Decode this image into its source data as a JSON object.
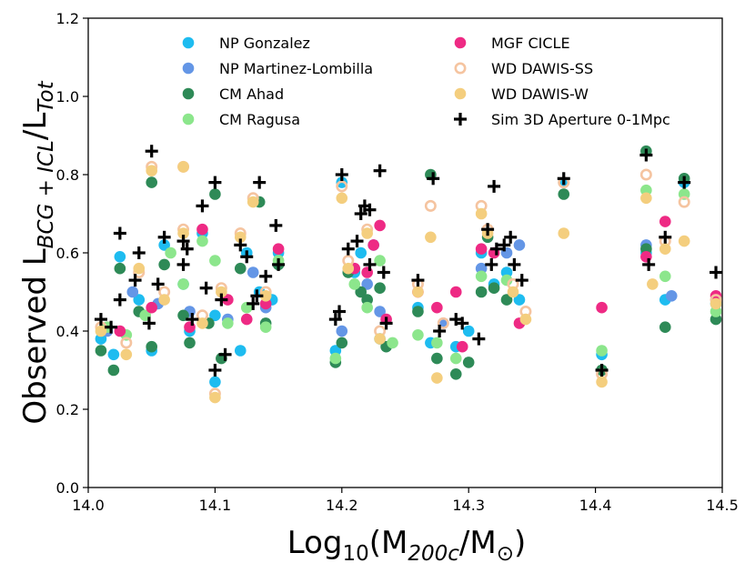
{
  "chart_data": {
    "type": "scatter",
    "title": "",
    "xlim": [
      14.0,
      14.5
    ],
    "ylim": [
      0.0,
      1.2
    ],
    "xticks": [
      "14.0",
      "14.1",
      "14.2",
      "14.3",
      "14.4",
      "14.5"
    ],
    "yticks": [
      "0.0",
      "0.2",
      "0.4",
      "0.6",
      "0.8",
      "1.0",
      "1.2"
    ],
    "xlabel": {
      "pre": "Log",
      "sub": "10",
      "mid": "(M",
      "sub2": "200c",
      "post": "/M",
      "sun": "⊙",
      "end": ")"
    },
    "ylabel": {
      "pre": "Observed L",
      "sub": "BCG + ICL",
      "post": "/L",
      "sub2": "Tot"
    },
    "legend_position": "top",
    "series": [
      {
        "name": "NP Gonzalez",
        "color": "#1ebcf0",
        "marker": "filled-circle",
        "points": [
          [
            14.01,
            0.38
          ],
          [
            14.02,
            0.34
          ],
          [
            14.025,
            0.59
          ],
          [
            14.04,
            0.48
          ],
          [
            14.05,
            0.35
          ],
          [
            14.06,
            0.62
          ],
          [
            14.075,
            0.52
          ],
          [
            14.08,
            0.4
          ],
          [
            14.09,
            0.65
          ],
          [
            14.1,
            0.27
          ],
          [
            14.1,
            0.44
          ],
          [
            14.12,
            0.35
          ],
          [
            14.125,
            0.6
          ],
          [
            14.135,
            0.5
          ],
          [
            14.145,
            0.48
          ],
          [
            14.15,
            0.6
          ],
          [
            14.195,
            0.35
          ],
          [
            14.2,
            0.78
          ],
          [
            14.21,
            0.55
          ],
          [
            14.215,
            0.6
          ],
          [
            14.225,
            0.62
          ],
          [
            14.23,
            0.38
          ],
          [
            14.26,
            0.46
          ],
          [
            14.27,
            0.37
          ],
          [
            14.29,
            0.36
          ],
          [
            14.3,
            0.4
          ],
          [
            14.31,
            0.6
          ],
          [
            14.32,
            0.52
          ],
          [
            14.33,
            0.55
          ],
          [
            14.34,
            0.48
          ],
          [
            14.375,
            0.78
          ],
          [
            14.405,
            0.34
          ],
          [
            14.44,
            0.6
          ],
          [
            14.455,
            0.48
          ],
          [
            14.47,
            0.78
          ],
          [
            14.495,
            0.47
          ]
        ]
      },
      {
        "name": "NP Martinez-Lombilla",
        "color": "#6496e6",
        "marker": "filled-circle",
        "points": [
          [
            14.015,
            0.4
          ],
          [
            14.035,
            0.5
          ],
          [
            14.055,
            0.47
          ],
          [
            14.08,
            0.45
          ],
          [
            14.11,
            0.43
          ],
          [
            14.13,
            0.55
          ],
          [
            14.14,
            0.46
          ],
          [
            14.2,
            0.4
          ],
          [
            14.22,
            0.52
          ],
          [
            14.23,
            0.45
          ],
          [
            14.28,
            0.42
          ],
          [
            14.31,
            0.56
          ],
          [
            14.33,
            0.6
          ],
          [
            14.34,
            0.62
          ],
          [
            14.44,
            0.62
          ],
          [
            14.46,
            0.49
          ]
        ]
      },
      {
        "name": "CM Ahad",
        "color": "#2e8a57",
        "marker": "filled-circle",
        "points": [
          [
            14.01,
            0.35
          ],
          [
            14.02,
            0.3
          ],
          [
            14.025,
            0.56
          ],
          [
            14.04,
            0.45
          ],
          [
            14.05,
            0.36
          ],
          [
            14.05,
            0.78
          ],
          [
            14.06,
            0.57
          ],
          [
            14.075,
            0.44
          ],
          [
            14.08,
            0.37
          ],
          [
            14.095,
            0.42
          ],
          [
            14.1,
            0.75
          ],
          [
            14.105,
            0.33
          ],
          [
            14.12,
            0.56
          ],
          [
            14.135,
            0.73
          ],
          [
            14.14,
            0.42
          ],
          [
            14.15,
            0.57
          ],
          [
            14.195,
            0.32
          ],
          [
            14.2,
            0.37
          ],
          [
            14.205,
            0.55
          ],
          [
            14.215,
            0.5
          ],
          [
            14.22,
            0.48
          ],
          [
            14.23,
            0.51
          ],
          [
            14.235,
            0.36
          ],
          [
            14.26,
            0.45
          ],
          [
            14.27,
            0.8
          ],
          [
            14.275,
            0.33
          ],
          [
            14.29,
            0.29
          ],
          [
            14.3,
            0.32
          ],
          [
            14.31,
            0.5
          ],
          [
            14.315,
            0.64
          ],
          [
            14.32,
            0.51
          ],
          [
            14.33,
            0.48
          ],
          [
            14.375,
            0.75
          ],
          [
            14.405,
            0.3
          ],
          [
            14.44,
            0.86
          ],
          [
            14.44,
            0.61
          ],
          [
            14.455,
            0.41
          ],
          [
            14.47,
            0.79
          ],
          [
            14.495,
            0.43
          ]
        ]
      },
      {
        "name": "CM Ragusa",
        "color": "#8ce68c",
        "marker": "filled-circle",
        "points": [
          [
            14.015,
            0.41
          ],
          [
            14.03,
            0.39
          ],
          [
            14.045,
            0.44
          ],
          [
            14.065,
            0.6
          ],
          [
            14.075,
            0.52
          ],
          [
            14.09,
            0.63
          ],
          [
            14.1,
            0.58
          ],
          [
            14.11,
            0.42
          ],
          [
            14.125,
            0.46
          ],
          [
            14.14,
            0.41
          ],
          [
            14.15,
            0.58
          ],
          [
            14.195,
            0.33
          ],
          [
            14.21,
            0.52
          ],
          [
            14.22,
            0.46
          ],
          [
            14.23,
            0.58
          ],
          [
            14.24,
            0.37
          ],
          [
            14.26,
            0.39
          ],
          [
            14.275,
            0.37
          ],
          [
            14.29,
            0.33
          ],
          [
            14.31,
            0.54
          ],
          [
            14.33,
            0.53
          ],
          [
            14.405,
            0.35
          ],
          [
            14.44,
            0.76
          ],
          [
            14.455,
            0.54
          ],
          [
            14.47,
            0.75
          ],
          [
            14.495,
            0.45
          ]
        ]
      },
      {
        "name": "MGF CICLE",
        "color": "#ee2a84",
        "marker": "filled-circle",
        "points": [
          [
            14.025,
            0.4
          ],
          [
            14.05,
            0.46
          ],
          [
            14.08,
            0.41
          ],
          [
            14.09,
            0.66
          ],
          [
            14.11,
            0.48
          ],
          [
            14.125,
            0.43
          ],
          [
            14.14,
            0.47
          ],
          [
            14.15,
            0.61
          ],
          [
            14.21,
            0.56
          ],
          [
            14.22,
            0.55
          ],
          [
            14.225,
            0.62
          ],
          [
            14.23,
            0.67
          ],
          [
            14.235,
            0.43
          ],
          [
            14.26,
            0.5
          ],
          [
            14.275,
            0.46
          ],
          [
            14.29,
            0.5
          ],
          [
            14.295,
            0.36
          ],
          [
            14.31,
            0.61
          ],
          [
            14.32,
            0.6
          ],
          [
            14.34,
            0.42
          ],
          [
            14.405,
            0.46
          ],
          [
            14.44,
            0.59
          ],
          [
            14.455,
            0.68
          ],
          [
            14.495,
            0.49
          ]
        ]
      },
      {
        "name": "WD DAWIS-SS",
        "color": "#f5c4a0",
        "marker": "open-circle",
        "points": [
          [
            14.01,
            0.41
          ],
          [
            14.03,
            0.37
          ],
          [
            14.04,
            0.55
          ],
          [
            14.05,
            0.82
          ],
          [
            14.06,
            0.5
          ],
          [
            14.075,
            0.82
          ],
          [
            14.075,
            0.66
          ],
          [
            14.09,
            0.44
          ],
          [
            14.1,
            0.24
          ],
          [
            14.105,
            0.51
          ],
          [
            14.12,
            0.65
          ],
          [
            14.13,
            0.74
          ],
          [
            14.14,
            0.5
          ],
          [
            14.2,
            0.77
          ],
          [
            14.205,
            0.58
          ],
          [
            14.22,
            0.66
          ],
          [
            14.23,
            0.4
          ],
          [
            14.26,
            0.52
          ],
          [
            14.27,
            0.72
          ],
          [
            14.28,
            0.42
          ],
          [
            14.31,
            0.72
          ],
          [
            14.315,
            0.66
          ],
          [
            14.335,
            0.52
          ],
          [
            14.345,
            0.45
          ],
          [
            14.375,
            0.78
          ],
          [
            14.405,
            0.29
          ],
          [
            14.44,
            0.8
          ],
          [
            14.455,
            0.63
          ],
          [
            14.47,
            0.73
          ],
          [
            14.495,
            0.48
          ]
        ]
      },
      {
        "name": "WD DAWIS-W",
        "color": "#f4ce7e",
        "marker": "filled-circle",
        "points": [
          [
            14.01,
            0.4
          ],
          [
            14.03,
            0.34
          ],
          [
            14.04,
            0.56
          ],
          [
            14.05,
            0.81
          ],
          [
            14.06,
            0.48
          ],
          [
            14.075,
            0.82
          ],
          [
            14.075,
            0.65
          ],
          [
            14.09,
            0.42
          ],
          [
            14.1,
            0.23
          ],
          [
            14.105,
            0.5
          ],
          [
            14.12,
            0.64
          ],
          [
            14.13,
            0.73
          ],
          [
            14.14,
            0.49
          ],
          [
            14.2,
            0.74
          ],
          [
            14.205,
            0.56
          ],
          [
            14.22,
            0.65
          ],
          [
            14.23,
            0.38
          ],
          [
            14.26,
            0.5
          ],
          [
            14.27,
            0.64
          ],
          [
            14.275,
            0.28
          ],
          [
            14.31,
            0.7
          ],
          [
            14.315,
            0.65
          ],
          [
            14.335,
            0.5
          ],
          [
            14.345,
            0.43
          ],
          [
            14.375,
            0.65
          ],
          [
            14.405,
            0.27
          ],
          [
            14.44,
            0.74
          ],
          [
            14.445,
            0.52
          ],
          [
            14.455,
            0.61
          ],
          [
            14.47,
            0.63
          ],
          [
            14.495,
            0.47
          ]
        ]
      },
      {
        "name": "Sim 3D Aperture 0-1Mpc",
        "color": "#000000",
        "marker": "plus",
        "points": [
          [
            14.01,
            0.43
          ],
          [
            14.018,
            0.41
          ],
          [
            14.025,
            0.65
          ],
          [
            14.025,
            0.48
          ],
          [
            14.037,
            0.53
          ],
          [
            14.04,
            0.6
          ],
          [
            14.048,
            0.42
          ],
          [
            14.05,
            0.86
          ],
          [
            14.055,
            0.52
          ],
          [
            14.06,
            0.64
          ],
          [
            14.075,
            0.63
          ],
          [
            14.075,
            0.57
          ],
          [
            14.078,
            0.61
          ],
          [
            14.082,
            0.43
          ],
          [
            14.09,
            0.72
          ],
          [
            14.093,
            0.51
          ],
          [
            14.1,
            0.78
          ],
          [
            14.1,
            0.3
          ],
          [
            14.105,
            0.48
          ],
          [
            14.108,
            0.34
          ],
          [
            14.12,
            0.62
          ],
          [
            14.125,
            0.59
          ],
          [
            14.13,
            0.47
          ],
          [
            14.133,
            0.49
          ],
          [
            14.135,
            0.78
          ],
          [
            14.14,
            0.54
          ],
          [
            14.148,
            0.67
          ],
          [
            14.15,
            0.57
          ],
          [
            14.195,
            0.43
          ],
          [
            14.198,
            0.45
          ],
          [
            14.2,
            0.8
          ],
          [
            14.205,
            0.61
          ],
          [
            14.212,
            0.63
          ],
          [
            14.215,
            0.7
          ],
          [
            14.218,
            0.72
          ],
          [
            14.222,
            0.71
          ],
          [
            14.222,
            0.57
          ],
          [
            14.23,
            0.81
          ],
          [
            14.233,
            0.55
          ],
          [
            14.235,
            0.42
          ],
          [
            14.26,
            0.53
          ],
          [
            14.272,
            0.79
          ],
          [
            14.277,
            0.4
          ],
          [
            14.29,
            0.43
          ],
          [
            14.295,
            0.42
          ],
          [
            14.308,
            0.38
          ],
          [
            14.315,
            0.66
          ],
          [
            14.318,
            0.57
          ],
          [
            14.32,
            0.77
          ],
          [
            14.322,
            0.61
          ],
          [
            14.328,
            0.62
          ],
          [
            14.333,
            0.64
          ],
          [
            14.336,
            0.57
          ],
          [
            14.342,
            0.53
          ],
          [
            14.375,
            0.79
          ],
          [
            14.405,
            0.3
          ],
          [
            14.44,
            0.85
          ],
          [
            14.442,
            0.57
          ],
          [
            14.455,
            0.64
          ],
          [
            14.47,
            0.78
          ],
          [
            14.495,
            0.55
          ]
        ]
      }
    ]
  }
}
